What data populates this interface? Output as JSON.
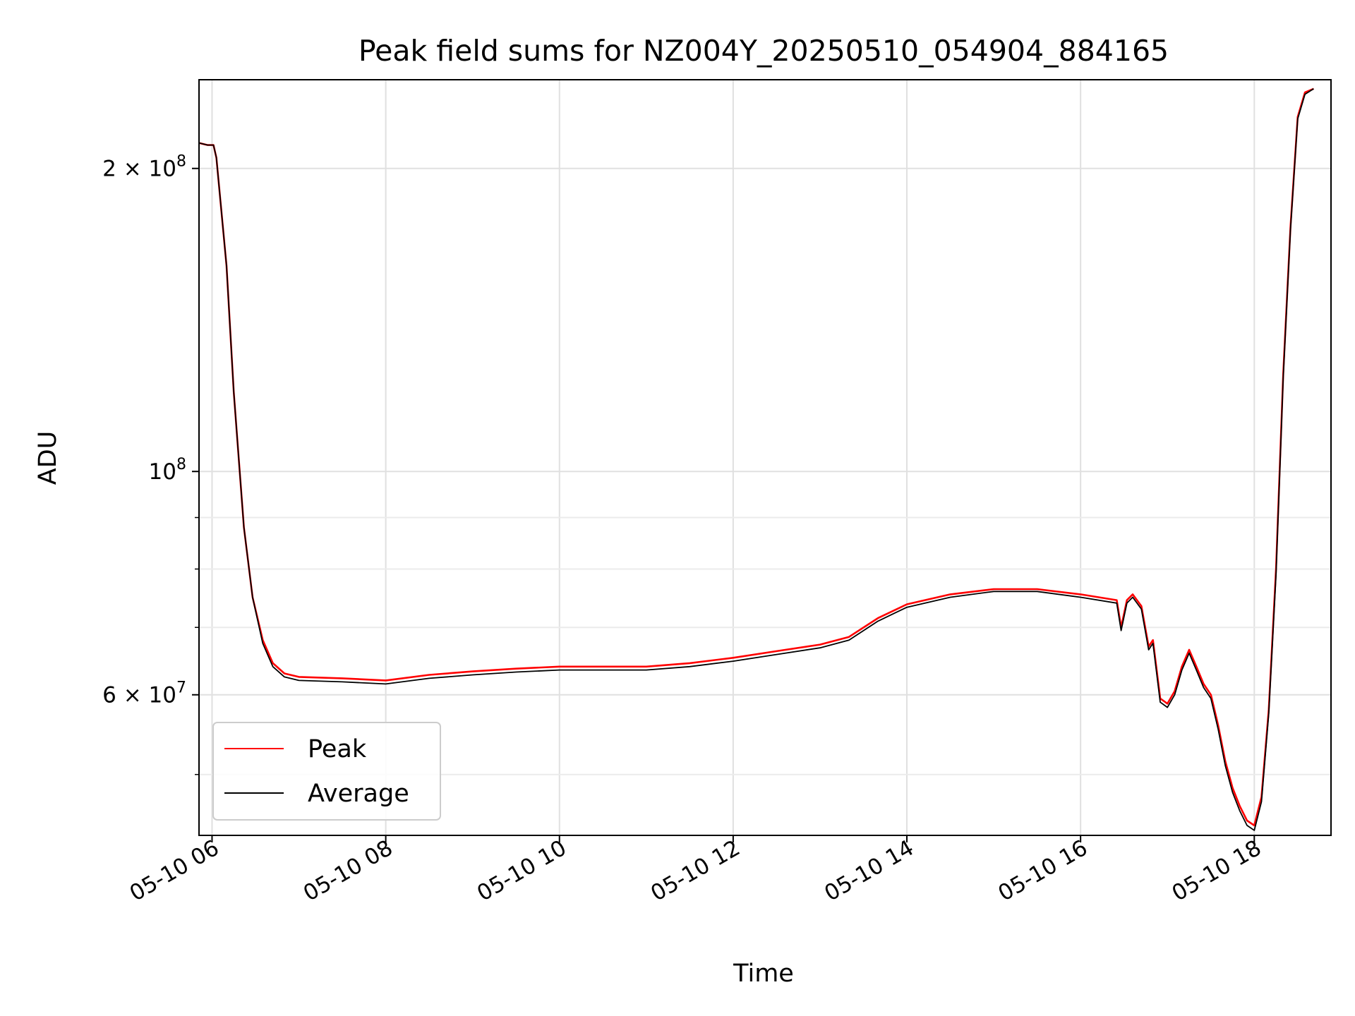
{
  "chart_data": {
    "type": "line",
    "title": "Peak field sums for NZ004Y_20250510_054904_884165",
    "xlabel": "Time",
    "ylabel": "ADU",
    "yscale": "log",
    "xlim": [
      "05-10 05:51",
      "05-10 18:53"
    ],
    "ylim": [
      43500000,
      245000000
    ],
    "grid": true,
    "legend_position": "lower-left",
    "x_ticks": [
      {
        "t": "05-10 06:00",
        "label": "05-10 06"
      },
      {
        "t": "05-10 08:00",
        "label": "05-10 08"
      },
      {
        "t": "05-10 10:00",
        "label": "05-10 10"
      },
      {
        "t": "05-10 12:00",
        "label": "05-10 12"
      },
      {
        "t": "05-10 14:00",
        "label": "05-10 14"
      },
      {
        "t": "05-10 16:00",
        "label": "05-10 16"
      },
      {
        "t": "05-10 18:00",
        "label": "05-10 18"
      }
    ],
    "y_ticks": [
      {
        "v": 200000000,
        "mant": "2 × 10",
        "exp": "8"
      },
      {
        "v": 100000000,
        "mant": "10",
        "exp": "8"
      },
      {
        "v": 60000000,
        "mant": "6 × 10",
        "exp": "7"
      }
    ],
    "y_minor_ticks": [
      50000000,
      70000000,
      80000000,
      90000000
    ],
    "series": [
      {
        "name": "Peak",
        "color": "#ff0000",
        "points": [
          [
            "05-10 05:51",
            212000000
          ],
          [
            "05-10 05:57",
            211000000
          ],
          [
            "05-10 06:01",
            211000000
          ],
          [
            "05-10 06:03",
            205000000
          ],
          [
            "05-10 06:10",
            160000000
          ],
          [
            "05-10 06:15",
            120000000
          ],
          [
            "05-10 06:22",
            88000000
          ],
          [
            "05-10 06:28",
            75000000
          ],
          [
            "05-10 06:35",
            68000000
          ],
          [
            "05-10 06:42",
            64500000
          ],
          [
            "05-10 06:50",
            63000000
          ],
          [
            "05-10 07:00",
            62500000
          ],
          [
            "05-10 07:30",
            62300000
          ],
          [
            "05-10 08:00",
            62000000
          ],
          [
            "05-10 08:30",
            62800000
          ],
          [
            "05-10 09:00",
            63300000
          ],
          [
            "05-10 09:30",
            63700000
          ],
          [
            "05-10 10:00",
            64000000
          ],
          [
            "05-10 10:30",
            64000000
          ],
          [
            "05-10 11:00",
            64000000
          ],
          [
            "05-10 11:30",
            64500000
          ],
          [
            "05-10 12:00",
            65300000
          ],
          [
            "05-10 12:30",
            66300000
          ],
          [
            "05-10 13:00",
            67300000
          ],
          [
            "05-10 13:20",
            68500000
          ],
          [
            "05-10 13:40",
            71500000
          ],
          [
            "05-10 14:00",
            73800000
          ],
          [
            "05-10 14:30",
            75500000
          ],
          [
            "05-10 15:00",
            76400000
          ],
          [
            "05-10 15:30",
            76400000
          ],
          [
            "05-10 16:00",
            75500000
          ],
          [
            "05-10 16:25",
            74500000
          ],
          [
            "05-10 16:28",
            70000000
          ],
          [
            "05-10 16:32",
            74500000
          ],
          [
            "05-10 16:36",
            75500000
          ],
          [
            "05-10 16:42",
            73500000
          ],
          [
            "05-10 16:47",
            67000000
          ],
          [
            "05-10 16:50",
            68000000
          ],
          [
            "05-10 16:55",
            59500000
          ],
          [
            "05-10 17:00",
            58800000
          ],
          [
            "05-10 17:05",
            60500000
          ],
          [
            "05-10 17:10",
            64000000
          ],
          [
            "05-10 17:15",
            66500000
          ],
          [
            "05-10 17:20",
            64000000
          ],
          [
            "05-10 17:25",
            61500000
          ],
          [
            "05-10 17:30",
            60000000
          ],
          [
            "05-10 17:35",
            56000000
          ],
          [
            "05-10 17:40",
            51500000
          ],
          [
            "05-10 17:45",
            48500000
          ],
          [
            "05-10 17:50",
            46500000
          ],
          [
            "05-10 17:55",
            45000000
          ],
          [
            "05-10 18:00",
            44500000
          ],
          [
            "05-10 18:05",
            47500000
          ],
          [
            "05-10 18:10",
            58000000
          ],
          [
            "05-10 18:15",
            80000000
          ],
          [
            "05-10 18:20",
            125000000
          ],
          [
            "05-10 18:25",
            175000000
          ],
          [
            "05-10 18:30",
            225000000
          ],
          [
            "05-10 18:35",
            238000000
          ],
          [
            "05-10 18:41",
            240000000
          ]
        ]
      },
      {
        "name": "Average",
        "color": "#000000",
        "points": [
          [
            "05-10 05:51",
            212000000
          ],
          [
            "05-10 05:57",
            211000000
          ],
          [
            "05-10 06:01",
            211000000
          ],
          [
            "05-10 06:03",
            205000000
          ],
          [
            "05-10 06:10",
            160000000
          ],
          [
            "05-10 06:15",
            120000000
          ],
          [
            "05-10 06:22",
            88000000
          ],
          [
            "05-10 06:28",
            75000000
          ],
          [
            "05-10 06:35",
            67500000
          ],
          [
            "05-10 06:42",
            64000000
          ],
          [
            "05-10 06:50",
            62500000
          ],
          [
            "05-10 07:00",
            62000000
          ],
          [
            "05-10 07:30",
            61800000
          ],
          [
            "05-10 08:00",
            61500000
          ],
          [
            "05-10 08:30",
            62300000
          ],
          [
            "05-10 09:00",
            62800000
          ],
          [
            "05-10 09:30",
            63200000
          ],
          [
            "05-10 10:00",
            63500000
          ],
          [
            "05-10 10:30",
            63500000
          ],
          [
            "05-10 11:00",
            63500000
          ],
          [
            "05-10 11:30",
            64000000
          ],
          [
            "05-10 12:00",
            64800000
          ],
          [
            "05-10 12:30",
            65800000
          ],
          [
            "05-10 13:00",
            66800000
          ],
          [
            "05-10 13:20",
            68000000
          ],
          [
            "05-10 13:40",
            71000000
          ],
          [
            "05-10 14:00",
            73300000
          ],
          [
            "05-10 14:30",
            75000000
          ],
          [
            "05-10 15:00",
            76000000
          ],
          [
            "05-10 15:30",
            76000000
          ],
          [
            "05-10 16:00",
            75000000
          ],
          [
            "05-10 16:25",
            74000000
          ],
          [
            "05-10 16:28",
            69500000
          ],
          [
            "05-10 16:32",
            74000000
          ],
          [
            "05-10 16:36",
            75000000
          ],
          [
            "05-10 16:42",
            73000000
          ],
          [
            "05-10 16:47",
            66500000
          ],
          [
            "05-10 16:50",
            67500000
          ],
          [
            "05-10 16:55",
            59000000
          ],
          [
            "05-10 17:00",
            58300000
          ],
          [
            "05-10 17:05",
            60000000
          ],
          [
            "05-10 17:10",
            63500000
          ],
          [
            "05-10 17:15",
            66000000
          ],
          [
            "05-10 17:20",
            63500000
          ],
          [
            "05-10 17:25",
            61000000
          ],
          [
            "05-10 17:30",
            59500000
          ],
          [
            "05-10 17:35",
            55500000
          ],
          [
            "05-10 17:40",
            51000000
          ],
          [
            "05-10 17:45",
            48000000
          ],
          [
            "05-10 17:50",
            46000000
          ],
          [
            "05-10 17:55",
            44500000
          ],
          [
            "05-10 18:00",
            44000000
          ],
          [
            "05-10 18:05",
            47000000
          ],
          [
            "05-10 18:10",
            57500000
          ],
          [
            "05-10 18:15",
            79000000
          ],
          [
            "05-10 18:20",
            124000000
          ],
          [
            "05-10 18:25",
            174000000
          ],
          [
            "05-10 18:30",
            224000000
          ],
          [
            "05-10 18:35",
            237000000
          ],
          [
            "05-10 18:41",
            240000000
          ]
        ]
      }
    ]
  }
}
